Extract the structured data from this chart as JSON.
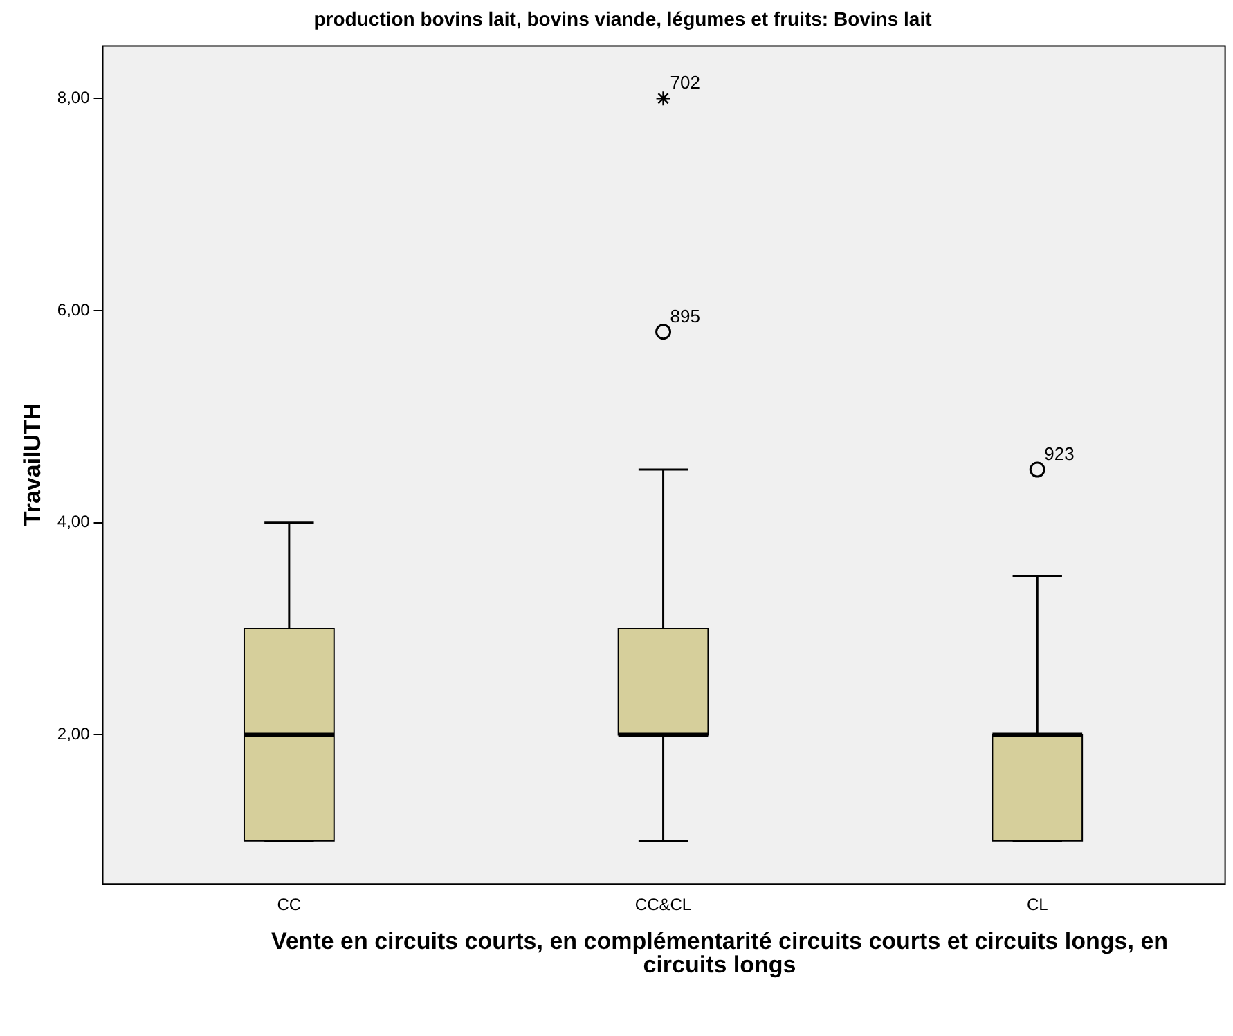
{
  "chart_data": {
    "type": "box",
    "title": "production bovins lait, bovins viande, légumes et fruits: Bovins lait",
    "xlabel": "Vente en circuits courts, en complémentarité circuits courts et circuits longs, en circuits longs",
    "ylabel": "TravailUTH",
    "categories": [
      "CC",
      "CC&CL",
      "CL"
    ],
    "color": "#d6cf9b",
    "boxes": [
      {
        "low": 1,
        "q1": 1,
        "median": 2,
        "q3": 3,
        "high": 4
      },
      {
        "low": 1,
        "q1": 2,
        "median": 2,
        "q3": 3,
        "high": 4.5,
        "outliers": [
          5.8
        ]
      },
      {
        "low": 1,
        "q1": 1,
        "median": 2,
        "q3": 2,
        "high": 3.5,
        "outliers": [
          4.5
        ]
      }
    ],
    "series": [
      {
        "type": "scatter",
        "x": [
          "CC&CL"
        ],
        "values": [
          8
        ],
        "marker": "cross",
        "color": "#000000"
      }
    ],
    "ylim": [
      0.6,
      8.5
    ],
    "yticks": [
      {
        "value": 2,
        "label": "2,00"
      },
      {
        "value": 4,
        "label": "4,00"
      },
      {
        "value": 6,
        "label": "6,00"
      },
      {
        "value": 8,
        "label": "8,00"
      }
    ],
    "annotations": [
      "702",
      "895",
      "923"
    ],
    "grid": false,
    "legend": false
  }
}
